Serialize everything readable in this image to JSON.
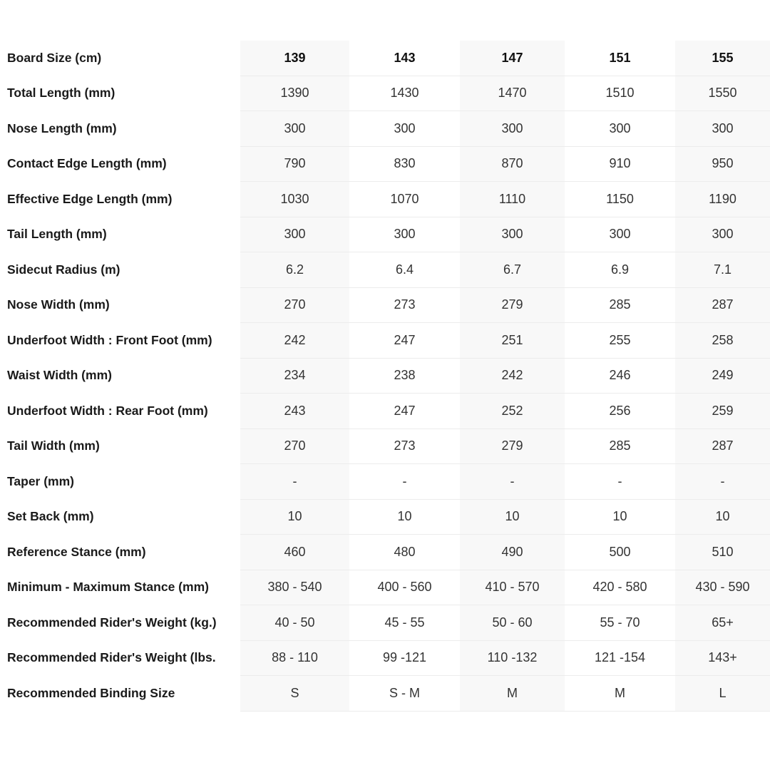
{
  "columns": [
    "139",
    "143",
    "147",
    "151",
    "155"
  ],
  "header_label": "Board Size (cm)",
  "rows": [
    {
      "label": "Total Length (mm)",
      "values": [
        "1390",
        "1430",
        "1470",
        "1510",
        "1550"
      ]
    },
    {
      "label": "Nose Length (mm)",
      "values": [
        "300",
        "300",
        "300",
        "300",
        "300"
      ]
    },
    {
      "label": "Contact Edge Length (mm)",
      "values": [
        "790",
        "830",
        "870",
        "910",
        "950"
      ]
    },
    {
      "label": "Effective Edge Length (mm)",
      "values": [
        "1030",
        "1070",
        "1110",
        "1150",
        "1190"
      ]
    },
    {
      "label": "Tail Length (mm)",
      "values": [
        "300",
        "300",
        "300",
        "300",
        "300"
      ]
    },
    {
      "label": "Sidecut Radius (m)",
      "values": [
        "6.2",
        "6.4",
        "6.7",
        "6.9",
        "7.1"
      ]
    },
    {
      "label": "Nose Width (mm)",
      "values": [
        "270",
        "273",
        "279",
        "285",
        "287"
      ]
    },
    {
      "label": "Underfoot Width : Front Foot (mm)",
      "values": [
        "242",
        "247",
        "251",
        "255",
        "258"
      ]
    },
    {
      "label": "Waist Width (mm)",
      "values": [
        "234",
        "238",
        "242",
        "246",
        "249"
      ]
    },
    {
      "label": "Underfoot Width : Rear Foot (mm)",
      "values": [
        "243",
        "247",
        "252",
        "256",
        "259"
      ]
    },
    {
      "label": "Tail Width (mm)",
      "values": [
        "270",
        "273",
        "279",
        "285",
        "287"
      ]
    },
    {
      "label": "Taper (mm)",
      "values": [
        "-",
        "-",
        "-",
        "-",
        "-"
      ]
    },
    {
      "label": "Set Back (mm)",
      "values": [
        "10",
        "10",
        "10",
        "10",
        "10"
      ]
    },
    {
      "label": "Reference Stance (mm)",
      "values": [
        "460",
        "480",
        "490",
        "500",
        "510"
      ]
    },
    {
      "label": "Minimum - Maximum Stance (mm)",
      "values": [
        "380 - 540",
        "400 - 560",
        "410 - 570",
        "420 - 580",
        "430 - 590"
      ]
    },
    {
      "label": "Recommended Rider's Weight (kg.)",
      "values": [
        "40 - 50",
        "45 - 55",
        "50 - 60",
        "55 - 70",
        "65+"
      ]
    },
    {
      "label": "Recommended Rider's Weight (lbs.",
      "values": [
        "88 - 110",
        "99 -121",
        "110 -132",
        "121 -154",
        "143+"
      ]
    },
    {
      "label": "Recommended Binding Size",
      "values": [
        "S",
        "S - M",
        "M",
        "M",
        "L"
      ]
    }
  ]
}
